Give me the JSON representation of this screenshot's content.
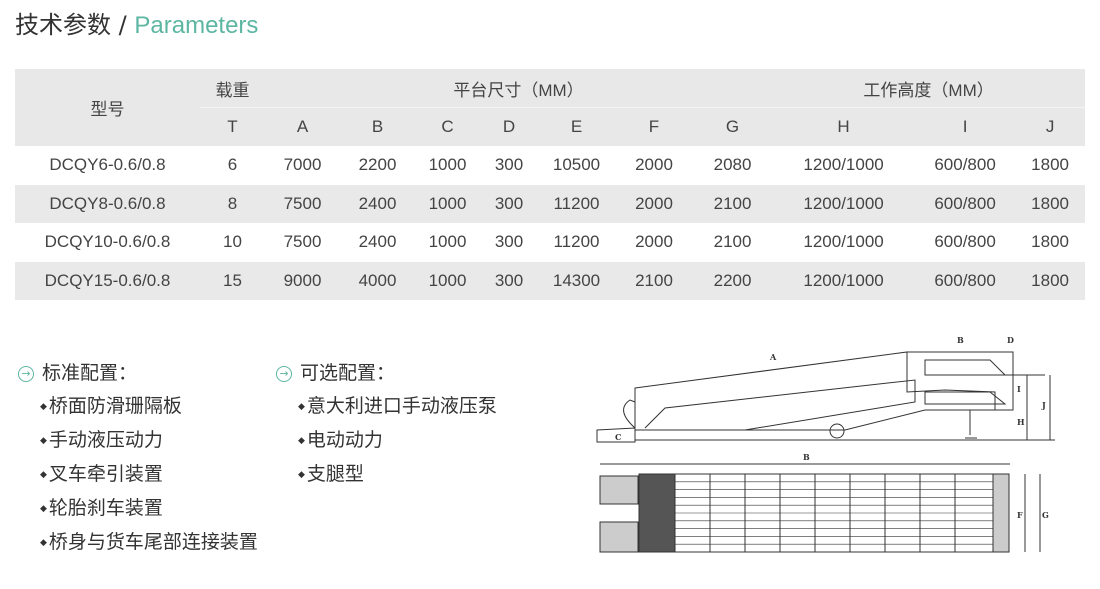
{
  "title": {
    "cn": "技术参数",
    "sep": "/",
    "en": "Parameters"
  },
  "table": {
    "header": {
      "model": "型号",
      "load": "载重",
      "platform": "平台尺寸（MM）",
      "height": "工作高度（MM）"
    },
    "columns": [
      "T",
      "A",
      "B",
      "C",
      "D",
      "E",
      "F",
      "G",
      "H",
      "I",
      "J"
    ],
    "rows": [
      [
        "DCQY6-0.6/0.8",
        "6",
        "7000",
        "2200",
        "1000",
        "300",
        "10500",
        "2000",
        "2080",
        "1200/1000",
        "600/800",
        "1800"
      ],
      [
        "DCQY8-0.6/0.8",
        "8",
        "7500",
        "2400",
        "1000",
        "300",
        "11200",
        "2000",
        "2100",
        "1200/1000",
        "600/800",
        "1800"
      ],
      [
        "DCQY10-0.6/0.8",
        "10",
        "7500",
        "2400",
        "1000",
        "300",
        "11200",
        "2000",
        "2100",
        "1200/1000",
        "600/800",
        "1800"
      ],
      [
        "DCQY15-0.6/0.8",
        "15",
        "9000",
        "4000",
        "1000",
        "300",
        "14300",
        "2100",
        "2200",
        "1200/1000",
        "600/800",
        "1800"
      ]
    ]
  },
  "standard": {
    "heading": "标准配置：",
    "items": [
      "桥面防滑珊隔板",
      "手动液压动力",
      "叉车牵引装置",
      "轮胎刹车装置",
      "桥身与货车尾部连接装置"
    ]
  },
  "optional": {
    "heading": "可选配置：",
    "items": [
      "意大利进口手动液压泵",
      "电动动力",
      "支腿型"
    ]
  },
  "diagram": {
    "labels": {
      "a": "A",
      "b": "B",
      "c": "C",
      "d": "D",
      "i": "I",
      "h": "H",
      "j": "J",
      "f": "F",
      "g": "G"
    }
  },
  "colors": {
    "accent": "#5db6a2",
    "row_alt": "#e9e9e9"
  }
}
